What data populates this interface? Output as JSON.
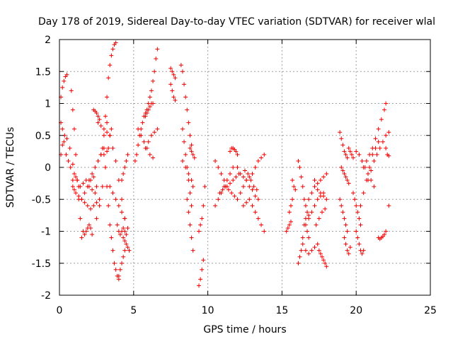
{
  "chart_data": {
    "type": "scatter",
    "title": "Day 178 of 2019, Sidereal Day-to-day VTEC variation (SDTVAR) for receiver wlal",
    "xlabel": "GPS time / hours",
    "ylabel": "SDTVAR / TECUs",
    "xlim": [
      0,
      25
    ],
    "ylim": [
      -2,
      2
    ],
    "xticks": [
      0,
      5,
      10,
      15,
      20,
      25
    ],
    "xtick_labels": [
      "0",
      "5",
      "10",
      "15",
      "20",
      "25"
    ],
    "yticks": [
      -2,
      -1.5,
      -1,
      -0.5,
      0,
      0.5,
      1,
      1.5,
      2
    ],
    "ytick_labels": [
      "-2",
      "-1.5",
      "-1",
      "-0.5",
      "0",
      "0.5",
      "1",
      "1.5",
      "2"
    ],
    "grid": true,
    "marker": "+",
    "color": "#ee0000",
    "tracks": [
      {
        "x": [
          0.1,
          0.2,
          0.3,
          0.4,
          0.5
        ],
        "y": [
          1.1,
          1.25,
          1.35,
          1.42,
          1.45
        ]
      },
      {
        "x": [
          0.1,
          0.2,
          0.3,
          0.45,
          0.6,
          0.75,
          0.9,
          1.0
        ],
        "y": [
          0.7,
          0.6,
          0.4,
          0.2,
          0.1,
          0.0,
          -0.2,
          -0.35
        ]
      },
      {
        "x": [
          0.1,
          0.2,
          0.35,
          0.5,
          0.7,
          0.9,
          1.1,
          1.3
        ],
        "y": [
          0.2,
          0.35,
          0.5,
          0.45,
          0.3,
          0.05,
          -0.15,
          -0.3
        ]
      },
      {
        "x": [
          0.8,
          0.9,
          1.0,
          1.1,
          1.2,
          1.3,
          1.4,
          1.5
        ],
        "y": [
          1.2,
          0.9,
          0.6,
          0.2,
          -0.2,
          -0.5,
          -0.8,
          -1.1
        ]
      },
      {
        "x": [
          1.0,
          1.2,
          1.4,
          1.6,
          1.8,
          2.0,
          2.2,
          2.4
        ],
        "y": [
          -0.1,
          -0.2,
          -0.3,
          -0.25,
          -0.2,
          -0.3,
          -0.35,
          -0.4
        ]
      },
      {
        "x": [
          0.9,
          1.1,
          1.3,
          1.5,
          1.7,
          1.9,
          2.1,
          2.3,
          2.5
        ],
        "y": [
          -0.3,
          -0.4,
          -0.45,
          -0.5,
          -0.4,
          -0.3,
          -0.2,
          -0.15,
          -0.3
        ]
      },
      {
        "x": [
          1.6,
          1.7,
          1.8,
          1.9,
          2.0,
          2.1,
          2.2
        ],
        "y": [
          -1.0,
          -1.05,
          -1.0,
          -0.95,
          -0.9,
          -0.95,
          -1.05
        ]
      },
      {
        "x": [
          1.5,
          1.7,
          1.9,
          2.1,
          2.3,
          2.5,
          2.7
        ],
        "y": [
          -0.5,
          -0.55,
          -0.6,
          -0.65,
          -0.6,
          -0.55,
          -0.5
        ]
      },
      {
        "x": [
          2.3,
          2.4,
          2.5,
          2.6,
          2.7
        ],
        "y": [
          0.9,
          0.88,
          0.85,
          0.8,
          0.75
        ]
      },
      {
        "x": [
          2.0,
          2.2,
          2.4,
          2.6,
          2.8,
          3.0,
          3.2
        ],
        "y": [
          -0.2,
          -0.1,
          0.0,
          0.1,
          0.2,
          0.3,
          0.25
        ]
      },
      {
        "x": [
          2.6,
          2.8,
          3.0,
          3.2,
          3.4
        ],
        "y": [
          0.7,
          0.65,
          0.6,
          0.55,
          0.5
        ]
      },
      {
        "x": [
          2.5,
          2.7,
          2.9,
          3.1,
          3.3,
          3.5
        ],
        "y": [
          -0.8,
          -0.6,
          -0.3,
          0.0,
          0.3,
          0.6
        ]
      },
      {
        "x": [
          2.8,
          3.0,
          3.1,
          3.2,
          3.3,
          3.4,
          3.5,
          3.6,
          3.7,
          3.8
        ],
        "y": [
          0.2,
          0.5,
          0.8,
          1.1,
          1.4,
          1.6,
          1.75,
          1.85,
          1.92,
          1.95
        ]
      },
      {
        "x": [
          2.9,
          3.0,
          3.1,
          3.2,
          3.3,
          3.4,
          3.5,
          3.6,
          3.7,
          3.8,
          3.9,
          4.0
        ],
        "y": [
          0.3,
          0.2,
          0.0,
          -0.3,
          -0.6,
          -0.9,
          -1.1,
          -1.3,
          -1.5,
          -1.6,
          -1.7,
          -1.75
        ]
      },
      {
        "x": [
          3.2,
          3.4,
          3.6,
          3.8,
          4.0,
          4.2,
          4.4
        ],
        "y": [
          0.7,
          0.5,
          0.3,
          0.1,
          -0.2,
          -0.5,
          -0.8
        ]
      },
      {
        "x": [
          3.4,
          3.6,
          3.8,
          4.0,
          4.2,
          4.4,
          4.6
        ],
        "y": [
          -0.3,
          -0.4,
          -0.5,
          -0.6,
          -0.7,
          -0.8,
          -0.95
        ]
      },
      {
        "x": [
          3.9,
          4.0,
          4.1,
          4.2,
          4.3,
          4.4,
          4.5
        ],
        "y": [
          -0.9,
          -1.0,
          -1.05,
          -1.0,
          -0.95,
          -1.0,
          -1.05
        ]
      },
      {
        "x": [
          4.0,
          4.1,
          4.2,
          4.3,
          4.4
        ],
        "y": [
          -1.7,
          -1.6,
          -1.5,
          -1.4,
          -1.3
        ]
      },
      {
        "x": [
          4.2,
          4.3,
          4.4,
          4.5,
          4.6
        ],
        "y": [
          -0.2,
          -0.1,
          0.0,
          0.1,
          0.2
        ]
      },
      {
        "x": [
          4.3,
          4.4,
          4.5,
          4.6,
          4.7
        ],
        "y": [
          -1.1,
          -1.15,
          -1.2,
          -1.25,
          -1.3
        ]
      },
      {
        "x": [
          5.1,
          5.2,
          5.3,
          5.4,
          5.5,
          5.6,
          5.7,
          5.8,
          5.9
        ],
        "y": [
          0.1,
          0.2,
          0.35,
          0.5,
          0.6,
          0.7,
          0.8,
          0.85,
          0.9
        ]
      },
      {
        "x": [
          5.3,
          5.5,
          5.7,
          5.9,
          6.1,
          6.3
        ],
        "y": [
          0.6,
          0.5,
          0.4,
          0.3,
          0.2,
          0.15
        ]
      },
      {
        "x": [
          5.8,
          5.9,
          6.0,
          6.1,
          6.2,
          6.3
        ],
        "y": [
          0.8,
          0.85,
          0.9,
          0.95,
          1.0,
          1.0
        ]
      },
      {
        "x": [
          5.9,
          6.0,
          6.1,
          6.2,
          6.3,
          6.4,
          6.5,
          6.6
        ],
        "y": [
          0.9,
          1.0,
          1.1,
          1.2,
          1.35,
          1.5,
          1.7,
          1.85
        ]
      },
      {
        "x": [
          5.8,
          6.0,
          6.2,
          6.4,
          6.6
        ],
        "y": [
          0.3,
          0.4,
          0.5,
          0.55,
          0.6
        ]
      },
      {
        "x": [
          7.5,
          7.6,
          7.7,
          7.8
        ],
        "y": [
          1.55,
          1.5,
          1.45,
          1.4
        ]
      },
      {
        "x": [
          7.5,
          7.6,
          7.7,
          7.8
        ],
        "y": [
          1.3,
          1.2,
          1.1,
          1.05
        ]
      },
      {
        "x": [
          8.2,
          8.3,
          8.4,
          8.5,
          8.6,
          8.7,
          8.8,
          8.9
        ],
        "y": [
          1.6,
          1.5,
          1.3,
          1.1,
          0.9,
          0.7,
          0.5,
          0.35
        ]
      },
      {
        "x": [
          8.3,
          8.4,
          8.5,
          8.6,
          8.7,
          8.8,
          8.9
        ],
        "y": [
          0.6,
          0.4,
          0.2,
          0.0,
          -0.2,
          -0.4,
          -0.6
        ]
      },
      {
        "x": [
          8.3,
          8.5,
          8.7,
          8.9,
          9.0
        ],
        "y": [
          0.1,
          0.0,
          -0.1,
          -0.2,
          -0.3
        ]
      },
      {
        "x": [
          8.6,
          8.7,
          8.8,
          8.9,
          9.0
        ],
        "y": [
          -0.5,
          -0.7,
          -0.9,
          -1.1,
          -1.3
        ]
      },
      {
        "x": [
          8.8,
          8.9,
          9.0,
          9.1
        ],
        "y": [
          0.3,
          0.25,
          0.2,
          0.15
        ]
      },
      {
        "x": [
          9.4,
          9.5,
          9.6,
          9.7,
          9.8
        ],
        "y": [
          -1.0,
          -0.9,
          -0.8,
          -0.6,
          -0.3
        ]
      },
      {
        "x": [
          9.4,
          9.5,
          9.6,
          9.7
        ],
        "y": [
          -1.85,
          -1.75,
          -1.6,
          -1.45
        ]
      },
      {
        "x": [
          10.5,
          10.7,
          10.9,
          11.1,
          11.3,
          11.5,
          11.7
        ],
        "y": [
          -0.6,
          -0.5,
          -0.4,
          -0.3,
          -0.2,
          -0.1,
          0.0
        ]
      },
      {
        "x": [
          10.5,
          10.7,
          10.9,
          11.1,
          11.3,
          11.5,
          11.7,
          11.9,
          12.1
        ],
        "y": [
          0.1,
          0.0,
          -0.1,
          -0.2,
          -0.3,
          -0.25,
          -0.2,
          -0.15,
          -0.1
        ]
      },
      {
        "x": [
          10.8,
          11.0,
          11.2,
          11.4,
          11.6,
          11.8,
          12.0,
          12.2,
          12.4
        ],
        "y": [
          -0.4,
          -0.35,
          -0.3,
          -0.35,
          -0.4,
          -0.45,
          -0.5,
          -0.4,
          -0.3
        ]
      },
      {
        "x": [
          11.5,
          11.6,
          11.7,
          11.8,
          11.9,
          12.0
        ],
        "y": [
          0.25,
          0.3,
          0.3,
          0.28,
          0.25,
          0.2
        ]
      },
      {
        "x": [
          12.0,
          12.2,
          12.4,
          12.6,
          12.8,
          13.0,
          13.2,
          13.4
        ],
        "y": [
          0.0,
          -0.1,
          -0.15,
          -0.2,
          -0.3,
          -0.35,
          -0.45,
          -0.5
        ]
      },
      {
        "x": [
          12.4,
          12.6,
          12.8,
          13.0,
          13.2,
          13.4,
          13.6,
          13.8
        ],
        "y": [
          -0.6,
          -0.55,
          -0.5,
          -0.6,
          -0.7,
          -0.8,
          -0.9,
          -1.0
        ]
      },
      {
        "x": [
          12.6,
          12.8,
          13.0,
          13.2,
          13.4,
          13.6,
          13.8
        ],
        "y": [
          -0.2,
          -0.15,
          -0.1,
          0.0,
          0.1,
          0.15,
          0.2
        ]
      },
      {
        "x": [
          12.5,
          12.7,
          12.9,
          13.1,
          13.3
        ],
        "y": [
          -0.05,
          -0.1,
          -0.2,
          -0.3,
          -0.35
        ]
      },
      {
        "x": [
          15.3,
          15.4,
          15.5,
          15.6
        ],
        "y": [
          -1.0,
          -0.95,
          -0.9,
          -0.85
        ]
      },
      {
        "x": [
          15.5,
          15.6,
          15.7
        ],
        "y": [
          -0.7,
          -0.6,
          -0.5
        ]
      },
      {
        "x": [
          15.7,
          15.8,
          15.9
        ],
        "y": [
          -0.2,
          -0.3,
          -0.35
        ]
      },
      {
        "x": [
          16.1,
          16.2,
          16.3,
          16.4,
          16.5,
          16.6,
          16.7,
          16.8
        ],
        "y": [
          0.1,
          0.0,
          -0.15,
          -0.3,
          -0.5,
          -0.6,
          -0.7,
          -0.8
        ]
      },
      {
        "x": [
          16.1,
          16.2,
          16.3,
          16.4,
          16.5,
          16.6,
          16.7,
          16.8
        ],
        "y": [
          -1.5,
          -1.4,
          -1.3,
          -1.1,
          -0.9,
          -0.9,
          -1.0,
          -1.1
        ]
      },
      {
        "x": [
          16.4,
          16.6,
          16.8,
          17.0,
          17.2,
          17.4
        ],
        "y": [
          -1.2,
          -1.3,
          -1.35,
          -1.3,
          -1.25,
          -1.2
        ]
      },
      {
        "x": [
          16.6,
          16.8,
          17.0,
          17.2,
          17.4,
          17.6,
          17.8
        ],
        "y": [
          -0.8,
          -0.75,
          -0.7,
          -0.6,
          -0.5,
          -0.45,
          -0.4
        ]
      },
      {
        "x": [
          16.8,
          17.0,
          17.2,
          17.4,
          17.6,
          17.8,
          18.0
        ],
        "y": [
          -0.5,
          -0.4,
          -0.3,
          -0.35,
          -0.4,
          -0.45,
          -0.5
        ]
      },
      {
        "x": [
          17.2,
          17.4,
          17.6,
          17.8,
          18.0
        ],
        "y": [
          -0.2,
          -0.25,
          -0.2,
          -0.15,
          -0.1
        ]
      },
      {
        "x": [
          17.5,
          17.6,
          17.7,
          17.8,
          17.9,
          18.0
        ],
        "y": [
          -1.3,
          -1.35,
          -1.4,
          -1.45,
          -1.5,
          -1.55
        ]
      },
      {
        "x": [
          17.3,
          17.5,
          17.7,
          17.9
        ],
        "y": [
          -0.9,
          -0.8,
          -0.7,
          -0.65
        ]
      },
      {
        "x": [
          18.9,
          19.0,
          19.1,
          19.2,
          19.3,
          19.4
        ],
        "y": [
          0.55,
          0.45,
          0.35,
          0.25,
          0.2,
          0.15
        ]
      },
      {
        "x": [
          18.9,
          19.0,
          19.1,
          19.2,
          19.3,
          19.4
        ],
        "y": [
          -0.5,
          -0.6,
          -0.7,
          -0.8,
          -0.9,
          -1.0
        ]
      },
      {
        "x": [
          19.0,
          19.1,
          19.2,
          19.3,
          19.4,
          19.5
        ],
        "y": [
          0.0,
          -0.05,
          -0.1,
          -0.15,
          -0.2,
          -0.25
        ]
      },
      {
        "x": [
          19.2,
          19.3,
          19.4,
          19.5,
          19.6
        ],
        "y": [
          -1.1,
          -1.2,
          -1.3,
          -1.35,
          -1.25
        ]
      },
      {
        "x": [
          19.5,
          19.6,
          19.7,
          19.8
        ],
        "y": [
          0.3,
          0.25,
          0.2,
          0.15
        ]
      },
      {
        "x": [
          19.8,
          19.9,
          20.0,
          20.1,
          20.2,
          20.3
        ],
        "y": [
          -0.4,
          -0.5,
          -0.6,
          -0.7,
          -0.8,
          -0.9
        ]
      },
      {
        "x": [
          20.0,
          20.1,
          20.2,
          20.3,
          20.4,
          20.5
        ],
        "y": [
          -1.0,
          -1.1,
          -1.2,
          -1.3,
          -1.35,
          -1.3
        ]
      },
      {
        "x": [
          20.0,
          20.2,
          20.4,
          20.6,
          20.8,
          21.0,
          21.2
        ],
        "y": [
          0.25,
          0.2,
          0.1,
          0.0,
          -0.1,
          -0.2,
          -0.3
        ]
      },
      {
        "x": [
          20.3,
          20.5,
          20.7,
          20.9,
          21.1,
          21.3,
          21.5
        ],
        "y": [
          -0.6,
          -0.4,
          -0.2,
          0.0,
          0.2,
          0.3,
          0.4
        ]
      },
      {
        "x": [
          20.5,
          20.7,
          20.9,
          21.1,
          21.3,
          21.5,
          21.7,
          21.9,
          22.0
        ],
        "y": [
          0.0,
          0.1,
          0.2,
          0.3,
          0.45,
          0.6,
          0.75,
          0.9,
          1.0
        ]
      },
      {
        "x": [
          20.8,
          21.0,
          21.2,
          21.4,
          21.6,
          21.8,
          22.0,
          22.2
        ],
        "y": [
          -0.2,
          -0.05,
          0.1,
          0.2,
          0.3,
          0.4,
          0.5,
          0.55
        ]
      },
      {
        "x": [
          21.5,
          21.6,
          21.7,
          21.8,
          21.9,
          22.0
        ],
        "y": [
          -1.1,
          -1.12,
          -1.1,
          -1.08,
          -1.05,
          -1.0
        ]
      },
      {
        "x": [
          22.0,
          22.1,
          22.2
        ],
        "y": [
          0.3,
          0.2,
          0.18
        ]
      },
      {
        "x": [
          22.2
        ],
        "y": [
          -0.6
        ]
      }
    ]
  }
}
